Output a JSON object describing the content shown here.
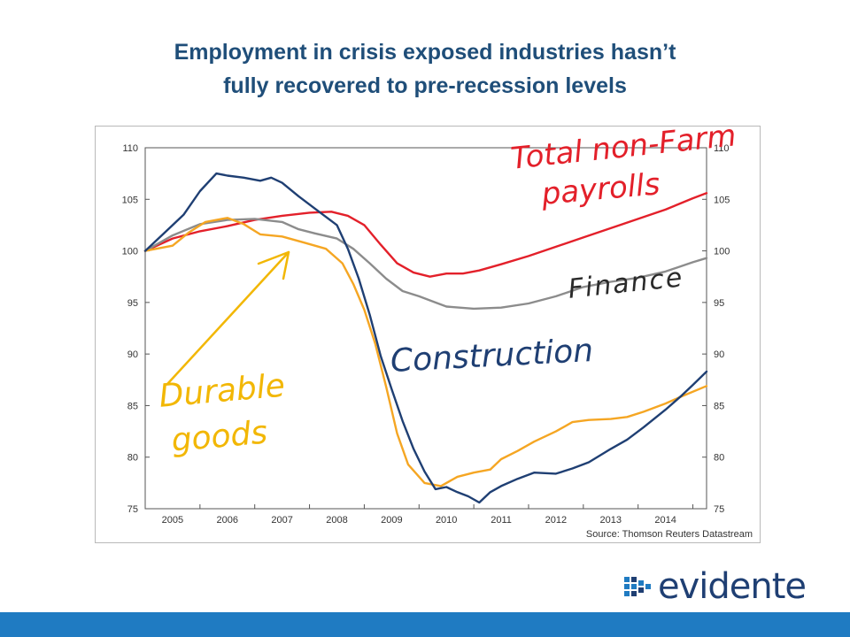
{
  "title": {
    "line1": "Employment in crisis exposed industries hasn’t",
    "line2": "fully recovered to pre-recession levels"
  },
  "source": "Source: Thomson Reuters Datastream",
  "annotations": {
    "total_line1": "Total non-Farm",
    "total_line2": "payrolls",
    "finance": "Finance",
    "construction": "Construction",
    "durable_line1": "Durable",
    "durable_line2": "goods"
  },
  "logo_text": "evidente",
  "colors": {
    "title": "#1f4e79",
    "total_non_farm": "#e3202a",
    "finance": "#8c8c8c",
    "construction": "#1f3f73",
    "durable_goods": "#f5a623",
    "footer": "#1f7bc2"
  },
  "chart_data": {
    "type": "line",
    "title": "",
    "xlabel": "",
    "ylabel": "",
    "x_tick_labels": [
      "2005",
      "2006",
      "2007",
      "2008",
      "2009",
      "2010",
      "2011",
      "2012",
      "2013",
      "2014"
    ],
    "y_ticks": [
      75,
      80,
      85,
      90,
      95,
      100,
      105,
      110
    ],
    "xlim": [
      2004.5,
      2014.75
    ],
    "ylim": [
      75,
      110
    ],
    "grid": false,
    "legend": "none",
    "right_axis": true,
    "series": [
      {
        "key": "total",
        "color": "#e3202a",
        "x": [
          2004.5,
          2005,
          2005.5,
          2006,
          2006.5,
          2007,
          2007.5,
          2007.9,
          2008.2,
          2008.5,
          2008.8,
          2009.1,
          2009.4,
          2009.7,
          2010,
          2010.3,
          2010.6,
          2011,
          2011.5,
          2012,
          2012.5,
          2013,
          2013.5,
          2014,
          2014.5,
          2014.75
        ],
        "y": [
          100,
          101.2,
          101.9,
          102.4,
          103,
          103.4,
          103.7,
          103.8,
          103.4,
          102.5,
          100.6,
          98.8,
          97.9,
          97.5,
          97.8,
          97.8,
          98.1,
          98.7,
          99.5,
          100.4,
          101.3,
          102.2,
          103.1,
          104,
          105.1,
          105.6
        ]
      },
      {
        "key": "finance",
        "color": "#8c8c8c",
        "x": [
          2004.5,
          2005,
          2005.5,
          2006,
          2006.5,
          2007,
          2007.3,
          2007.6,
          2008,
          2008.3,
          2008.6,
          2008.9,
          2009.2,
          2009.5,
          2009.8,
          2010,
          2010.5,
          2011,
          2011.5,
          2012,
          2012.5,
          2013,
          2013.5,
          2014,
          2014.5,
          2014.75
        ],
        "y": [
          100,
          101.5,
          102.6,
          103,
          103.1,
          102.8,
          102.1,
          101.7,
          101.2,
          100.2,
          98.8,
          97.3,
          96.1,
          95.6,
          95,
          94.6,
          94.4,
          94.5,
          94.9,
          95.6,
          96.5,
          97,
          97.4,
          98,
          98.9,
          99.3
        ]
      },
      {
        "key": "durable",
        "color": "#f5a623",
        "x": [
          2004.5,
          2005,
          2005.3,
          2005.6,
          2006,
          2006.3,
          2006.6,
          2007,
          2007.4,
          2007.8,
          2008.1,
          2008.3,
          2008.5,
          2008.7,
          2008.9,
          2009.1,
          2009.3,
          2009.6,
          2009.9,
          2010.2,
          2010.5,
          2010.8,
          2011,
          2011.3,
          2011.6,
          2012,
          2012.3,
          2012.6,
          2013,
          2013.3,
          2013.6,
          2014,
          2014.3,
          2014.75
        ],
        "y": [
          100,
          100.5,
          101.8,
          102.8,
          103.2,
          102.6,
          101.6,
          101.4,
          100.8,
          100.2,
          98.8,
          96.8,
          94.3,
          91,
          86.8,
          82.3,
          79.3,
          77.5,
          77.2,
          78.1,
          78.5,
          78.8,
          79.8,
          80.6,
          81.5,
          82.5,
          83.4,
          83.6,
          83.7,
          83.9,
          84.4,
          85.2,
          85.9,
          86.9
        ]
      },
      {
        "key": "construction",
        "color": "#1f3f73",
        "x": [
          2004.5,
          2004.8,
          2005.2,
          2005.5,
          2005.8,
          2006,
          2006.3,
          2006.6,
          2006.8,
          2007,
          2007.3,
          2007.6,
          2008,
          2008.2,
          2008.4,
          2008.6,
          2008.8,
          2009,
          2009.2,
          2009.4,
          2009.6,
          2009.8,
          2010,
          2010.2,
          2010.4,
          2010.6,
          2010.8,
          2011,
          2011.3,
          2011.6,
          2012,
          2012.3,
          2012.6,
          2013,
          2013.3,
          2013.6,
          2014,
          2014.3,
          2014.5,
          2014.75
        ],
        "y": [
          100,
          101.5,
          103.5,
          105.8,
          107.5,
          107.3,
          107.1,
          106.8,
          107.1,
          106.6,
          105.3,
          104.1,
          102.5,
          100.2,
          97.3,
          93.8,
          89.8,
          86.6,
          83.5,
          80.8,
          78.6,
          76.9,
          77.1,
          76.6,
          76.2,
          75.6,
          76.6,
          77.2,
          77.9,
          78.5,
          78.4,
          78.9,
          79.5,
          80.8,
          81.7,
          82.9,
          84.6,
          86,
          87,
          88.3
        ]
      }
    ]
  }
}
